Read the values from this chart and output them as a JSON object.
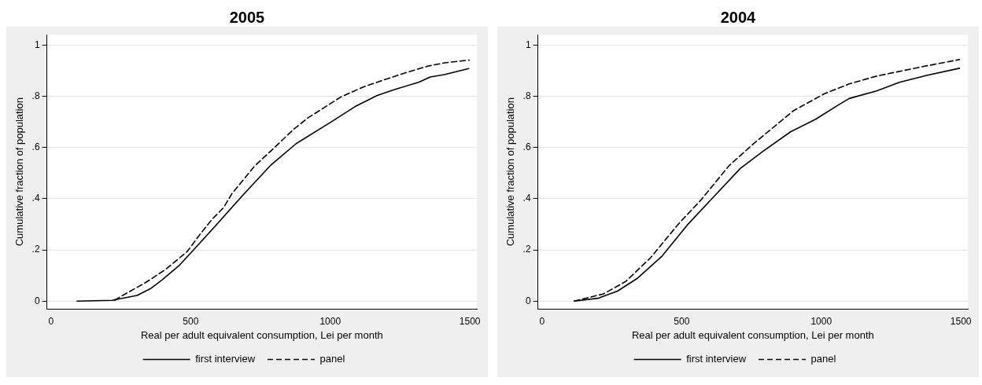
{
  "chart_data": [
    {
      "type": "line",
      "title": "2005",
      "xlabel": "Real per adult equivalent consumption, Lei per month",
      "ylabel": "Cumulative fraction of population",
      "xlim": [
        -15,
        1525
      ],
      "xticks": [
        0,
        500,
        1000,
        1500
      ],
      "ylim": [
        -0.03,
        1.04
      ],
      "yticks": [
        {
          "value": 0,
          "label": "0"
        },
        {
          "value": 0.2,
          "label": ".2"
        },
        {
          "value": 0.4,
          "label": ".4"
        },
        {
          "value": 0.6,
          "label": ".6"
        },
        {
          "value": 0.8,
          "label": ".8"
        },
        {
          "value": 1,
          "label": "1"
        }
      ],
      "grid": "y",
      "legend": "bottom",
      "marker": "none",
      "series": [
        {
          "name": "first interview",
          "color": "#000000",
          "line_style": "solid",
          "x": [
            93,
            218,
            308,
            358,
            398,
            458,
            533,
            588,
            688,
            788,
            878,
            1008,
            1088,
            1168,
            1228,
            1318,
            1358,
            1408,
            1468,
            1496
          ],
          "values": [
            0,
            0.003,
            0.022,
            0.05,
            0.083,
            0.138,
            0.227,
            0.293,
            0.415,
            0.532,
            0.615,
            0.703,
            0.759,
            0.803,
            0.825,
            0.855,
            0.875,
            0.884,
            0.9,
            0.908
          ]
        },
        {
          "name": "panel",
          "color": "#000000",
          "line_style": "dashed",
          "x": [
            228,
            248,
            338,
            408,
            488,
            533,
            578,
            618,
            648,
            728,
            788,
            868,
            918,
            1038,
            1118,
            1198,
            1268,
            1348,
            1408,
            1498
          ],
          "values": [
            0.003,
            0.017,
            0.072,
            0.122,
            0.194,
            0.26,
            0.321,
            0.365,
            0.42,
            0.526,
            0.587,
            0.67,
            0.714,
            0.797,
            0.836,
            0.866,
            0.891,
            0.917,
            0.93,
            0.941
          ]
        }
      ]
    },
    {
      "type": "line",
      "title": "2004",
      "xlabel": "Real per adult equivalent consumption, Lei per month",
      "ylabel": "Cumulative fraction of population",
      "xlim": [
        -15,
        1525
      ],
      "xticks": [
        0,
        500,
        1000,
        1500
      ],
      "ylim": [
        -0.03,
        1.04
      ],
      "yticks": [
        {
          "value": 0,
          "label": "0"
        },
        {
          "value": 0.2,
          "label": ".2"
        },
        {
          "value": 0.4,
          "label": ".4"
        },
        {
          "value": 0.6,
          "label": ".6"
        },
        {
          "value": 0.8,
          "label": ".8"
        },
        {
          "value": 1,
          "label": "1"
        }
      ],
      "grid": "y",
      "legend": "bottom",
      "marker": "none",
      "series": [
        {
          "name": "first interview",
          "color": "#000000",
          "line_style": "solid",
          "x": [
            115,
            200,
            270,
            340,
            430,
            520,
            610,
            710,
            790,
            890,
            980,
            1060,
            1100,
            1200,
            1280,
            1380,
            1495
          ],
          "values": [
            0,
            0.011,
            0.039,
            0.088,
            0.176,
            0.297,
            0.402,
            0.518,
            0.584,
            0.661,
            0.71,
            0.765,
            0.791,
            0.821,
            0.854,
            0.882,
            0.909
          ]
        },
        {
          "name": "panel",
          "color": "#000000",
          "line_style": "dashed",
          "x": [
            115,
            220,
            300,
            390,
            490,
            570,
            670,
            760,
            900,
            1010,
            1100,
            1200,
            1370,
            1495
          ],
          "values": [
            0,
            0.028,
            0.077,
            0.171,
            0.303,
            0.396,
            0.529,
            0.617,
            0.743,
            0.809,
            0.848,
            0.879,
            0.917,
            0.943
          ]
        }
      ]
    }
  ]
}
